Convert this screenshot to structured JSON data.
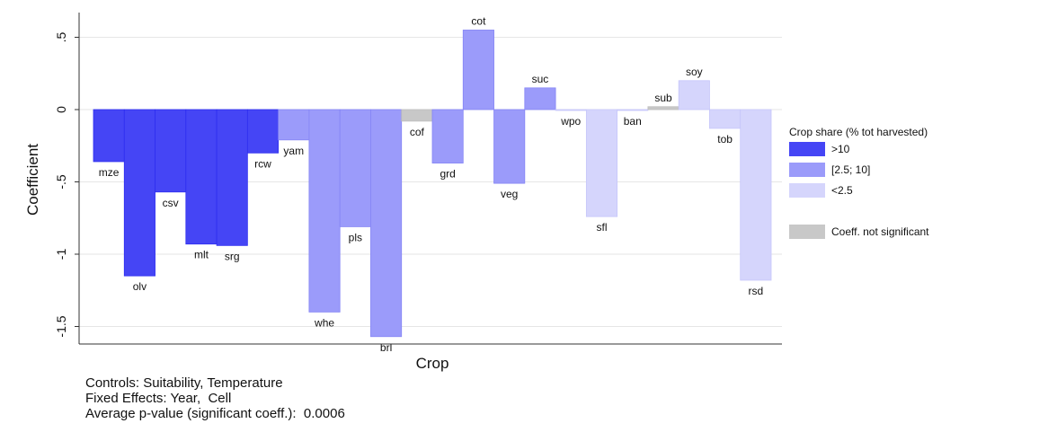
{
  "chart_data": {
    "type": "bar",
    "xlabel": "Crop",
    "ylabel": "Coefficient",
    "ylim": [
      -1.6,
      0.6
    ],
    "yticks": [
      0.5,
      0,
      -0.5,
      -1,
      -1.5
    ],
    "ytick_labels": [
      ".5",
      "0",
      "-.5",
      "-1",
      "-1.5"
    ],
    "grid": true,
    "legend_position": "right",
    "legend": {
      "title": "Crop share (% tot harvested)",
      "entries": [
        {
          "label": ">10",
          "group": "high"
        },
        {
          "label": "[2.5; 10]",
          "group": "mid"
        },
        {
          "label": "<2.5",
          "group": "low"
        },
        {
          "label": "Coeff. not significant",
          "group": "ns"
        }
      ]
    },
    "colors": {
      "high": "#4545f5",
      "mid": "#9b9bfa",
      "low": "#d5d5fc",
      "ns": "#c8c8c8",
      "grid": "#e6e6e6"
    },
    "bars": [
      {
        "label": "mze",
        "value": -0.36,
        "group": "high"
      },
      {
        "label": "olv",
        "value": -1.15,
        "group": "high"
      },
      {
        "label": "csv",
        "value": -0.57,
        "group": "high"
      },
      {
        "label": "mlt",
        "value": -0.93,
        "group": "high"
      },
      {
        "label": "srg",
        "value": -0.94,
        "group": "high"
      },
      {
        "label": "rcw",
        "value": -0.3,
        "group": "high"
      },
      {
        "label": "yam",
        "value": -0.21,
        "group": "mid"
      },
      {
        "label": "whe",
        "value": -1.4,
        "group": "mid"
      },
      {
        "label": "pls",
        "value": -0.81,
        "group": "mid"
      },
      {
        "label": "brl",
        "value": -1.57,
        "group": "mid"
      },
      {
        "label": "cof",
        "value": -0.08,
        "group": "ns"
      },
      {
        "label": "grd",
        "value": -0.37,
        "group": "mid"
      },
      {
        "label": "cot",
        "value": 0.55,
        "group": "mid"
      },
      {
        "label": "veg",
        "value": -0.51,
        "group": "mid"
      },
      {
        "label": "suc",
        "value": 0.15,
        "group": "mid"
      },
      {
        "label": "wpo",
        "value": -0.005,
        "group": "low"
      },
      {
        "label": "sfl",
        "value": -0.74,
        "group": "low"
      },
      {
        "label": "ban",
        "value": -0.005,
        "group": "low"
      },
      {
        "label": "sub",
        "value": 0.02,
        "group": "ns"
      },
      {
        "label": "soy",
        "value": 0.2,
        "group": "low"
      },
      {
        "label": "tob",
        "value": -0.13,
        "group": "low"
      },
      {
        "label": "rsd",
        "value": -1.18,
        "group": "low"
      }
    ]
  },
  "notes": {
    "controls": "Controls: Suitability, Temperature",
    "fixed_effects": "Fixed Effects: Year,  Cell",
    "avg_pvalue": "Average p-value (significant coeff.):  0.0006"
  }
}
